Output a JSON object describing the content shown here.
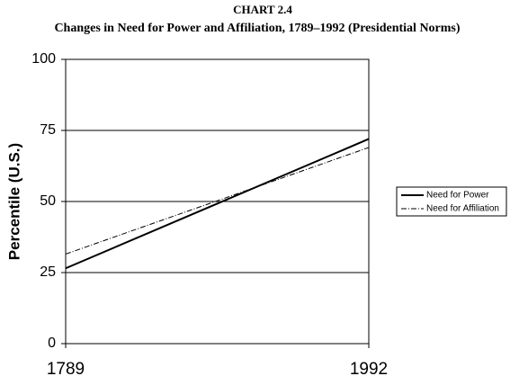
{
  "chart_data": {
    "type": "line",
    "title": "CHART 2.4",
    "subtitle": "Changes in Need for Power and Affiliation, 1789–1992 (Presidential Norms)",
    "y_label": "Percentile (U.S.)",
    "x": [
      1789,
      1992
    ],
    "xlim": [
      1789,
      1992
    ],
    "xticks": [
      1789,
      1992
    ],
    "ylim": [
      0,
      100
    ],
    "yticks": [
      0,
      25,
      50,
      75,
      100
    ],
    "grid": true,
    "legend": "right",
    "series": [
      {
        "name": "Need for Power",
        "color": "#000000",
        "dash": "solid",
        "values": [
          26.5,
          72
        ]
      },
      {
        "name": "Need for Affiliation",
        "color": "#000000",
        "dash": "dashdot",
        "values": [
          31.5,
          69
        ]
      }
    ]
  }
}
